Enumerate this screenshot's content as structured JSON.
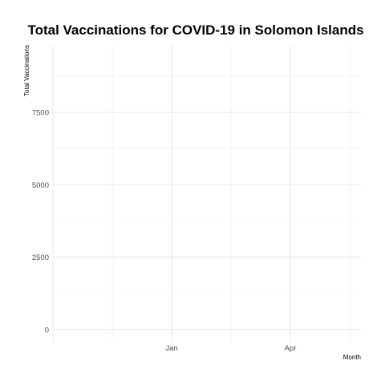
{
  "chart_data": {
    "type": "line",
    "title": "Total Vaccinations for COVID-19 in Solomon Islands",
    "xlabel": "Month",
    "ylabel": "Total Vaccinations",
    "x_ticks": [
      "Jan",
      "Apr"
    ],
    "y_ticks": [
      0,
      2500,
      5000,
      7500
    ],
    "ylim": [
      -450,
      9800
    ],
    "grid": true,
    "series": []
  }
}
